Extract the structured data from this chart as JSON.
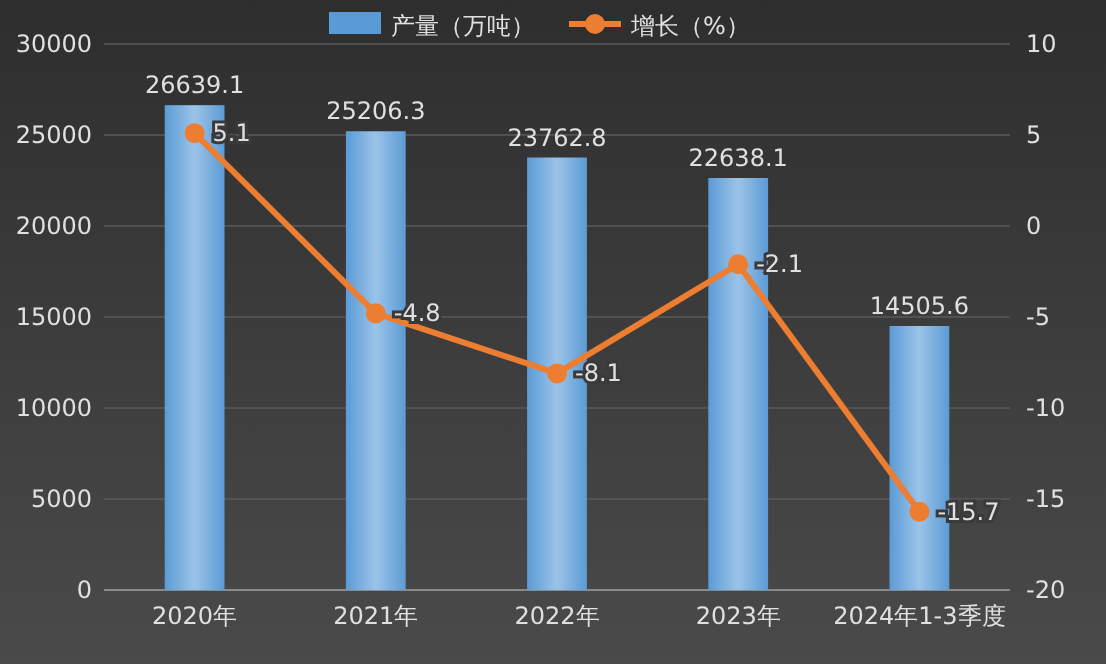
{
  "chart_data": {
    "type": "bar",
    "categories": [
      "2020年",
      "2021年",
      "2022年",
      "2023年",
      "2024年1-3季度"
    ],
    "series": [
      {
        "name": "产量（万吨）",
        "color": "#5b9bd5",
        "values": [
          26639.1,
          25206.3,
          23762.8,
          22638.1,
          14505.6
        ]
      },
      {
        "name": "增长（%）",
        "type": "line",
        "axis": "y2",
        "color": "#ed7d31",
        "marker": "circle",
        "values": [
          5.1,
          -4.8,
          -8.1,
          -2.1,
          -15.7
        ]
      }
    ],
    "ylim": [
      0,
      30000
    ],
    "yticks": [
      0,
      5000,
      10000,
      15000,
      20000,
      25000,
      30000
    ],
    "y2lim": [
      -20,
      10
    ],
    "y2ticks": [
      -20,
      -15,
      -10,
      -5,
      0,
      5,
      10
    ],
    "data_labels": true,
    "grid": "y",
    "legend": "top"
  }
}
